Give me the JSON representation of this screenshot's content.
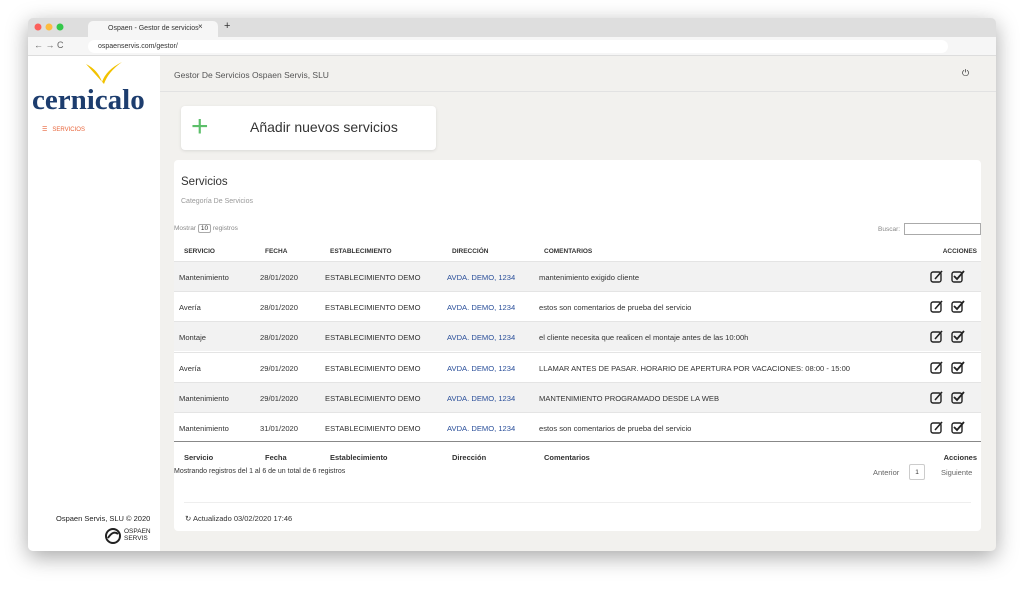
{
  "browser": {
    "tab_title": "Ospaen - Gestor de servicios",
    "url": "ospaenservis.com/gestor/"
  },
  "sidebar": {
    "logo": "cernicalo",
    "menu": [
      "SERVICIOS"
    ],
    "footer": "Ospaen Servis, SLU © 2020",
    "brand": [
      "OSPAEN",
      "SERVIS"
    ]
  },
  "header": {
    "title": "Gestor De Servicios Ospaen Servis, SLU"
  },
  "add_button": "Añadir nuevos servicios",
  "card": {
    "title": "Servicios",
    "subtitle": "Categoría De Servicios",
    "show_label": "Mostrar",
    "show_value": "10",
    "show_suffix": "registros",
    "search_label": "Buscar:",
    "columns": [
      "SERVICIO",
      "FECHA",
      "ESTABLECIMIENTO",
      "DIRECCIÓN",
      "COMENTARIOS",
      "ACCIONES"
    ],
    "rows": [
      [
        "Mantenimiento",
        "28/01/2020",
        "ESTABLECIMIENTO DEMO",
        "AVDA. DEMO, 1234",
        "mantenimiento exigido cliente"
      ],
      [
        "Avería",
        "28/01/2020",
        "ESTABLECIMIENTO DEMO",
        "AVDA. DEMO, 1234",
        "estos son comentarios de prueba del servicio"
      ],
      [
        "Montaje",
        "28/01/2020",
        "ESTABLECIMIENTO DEMO",
        "AVDA. DEMO, 1234",
        "el cliente necesita que realicen el montaje antes de las 10:00h"
      ],
      [
        "Avería",
        "29/01/2020",
        "ESTABLECIMIENTO DEMO",
        "AVDA. DEMO, 1234",
        "LLAMAR ANTES DE PASAR. HORARIO DE APERTURA POR VACACIONES: 08:00 - 15:00"
      ],
      [
        "Mantenimiento",
        "29/01/2020",
        "ESTABLECIMIENTO DEMO",
        "AVDA. DEMO, 1234",
        "MANTENIMIENTO PROGRAMADO DESDE LA WEB"
      ],
      [
        "Mantenimiento",
        "31/01/2020",
        "ESTABLECIMIENTO DEMO",
        "AVDA. DEMO, 1234",
        "estos son comentarios de prueba del servicio"
      ]
    ],
    "footer_columns": [
      "Servicio",
      "Fecha",
      "Establecimiento",
      "Dirección",
      "Comentarios",
      "Acciones"
    ],
    "info": "Mostrando registros del 1 al 6 de un total de 6 registros",
    "pagination": {
      "previous": "Anterior",
      "page": "1",
      "next": "Siguiente"
    },
    "updated": "Actualizado 03/02/2020 17:46"
  }
}
